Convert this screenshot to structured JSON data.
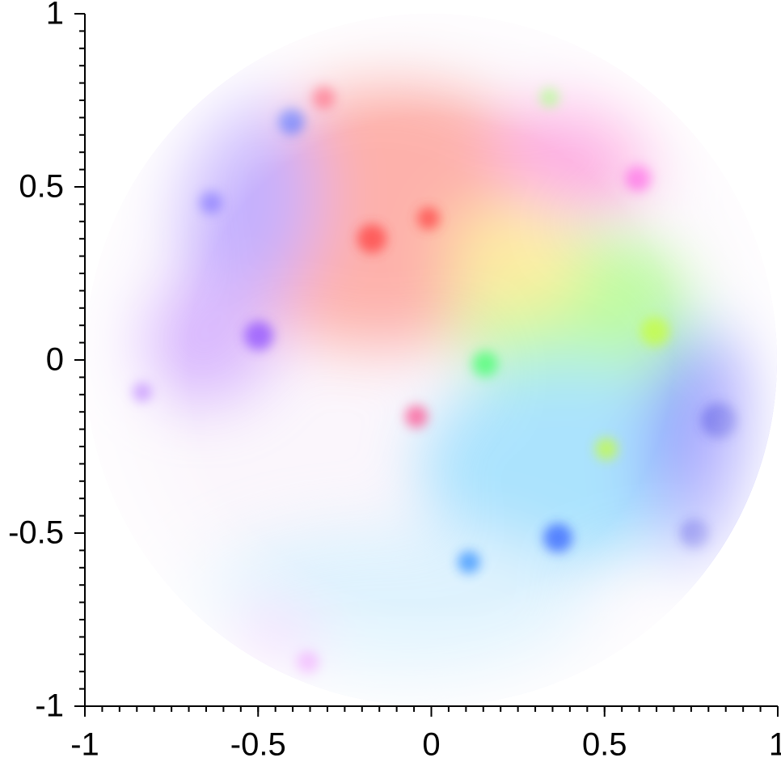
{
  "chart_data": {
    "type": "domain-coloring",
    "xlim": [
      -1,
      1
    ],
    "ylim": [
      -1,
      1
    ],
    "xticks": [
      -1,
      -0.5,
      0,
      0.5,
      1
    ],
    "yticks": [
      -1,
      -0.5,
      0,
      0.5,
      1
    ],
    "minor_step": 0.05
  }
}
